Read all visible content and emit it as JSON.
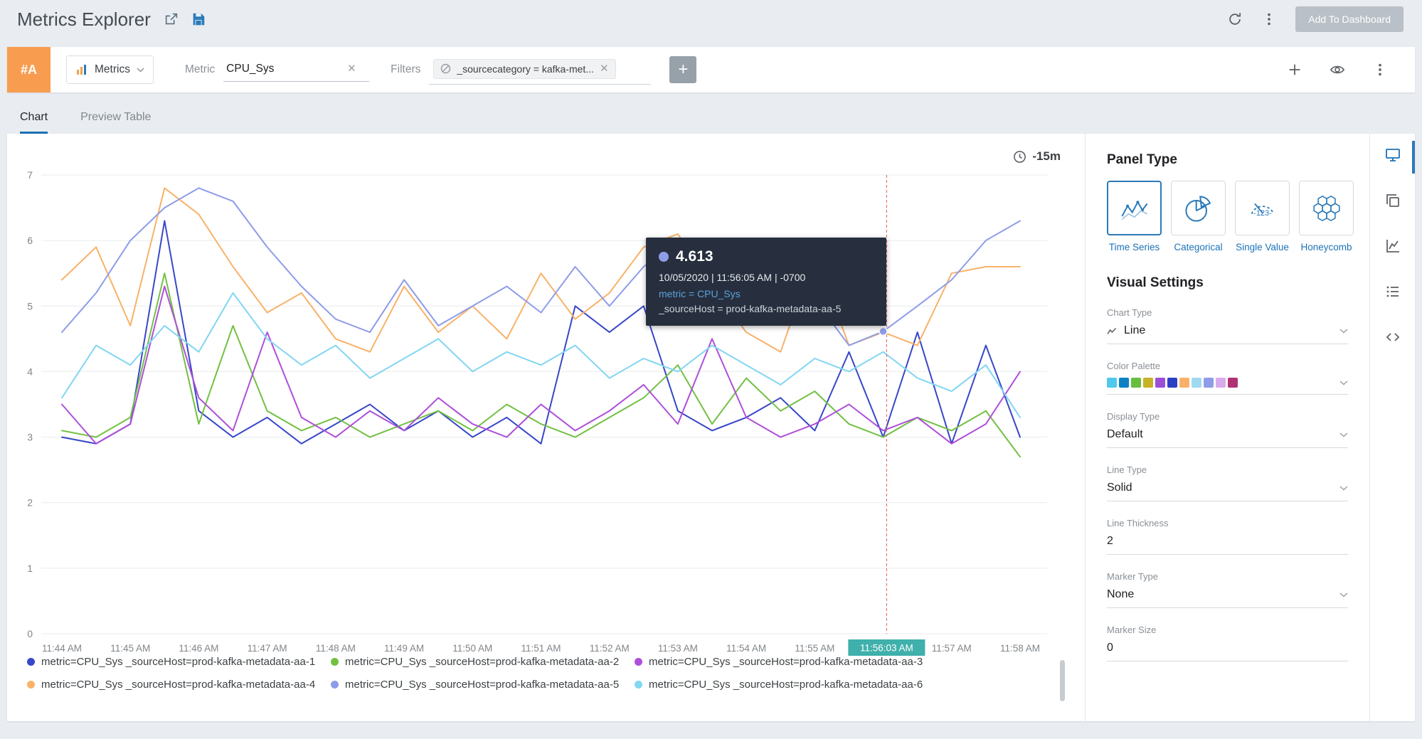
{
  "header": {
    "title": "Metrics Explorer",
    "add_to_dashboard_label": "Add To Dashboard"
  },
  "query": {
    "row_id": "#A",
    "type_selector": "Metrics",
    "metric_label": "Metric",
    "metric_value": "CPU_Sys",
    "filters_label": "Filters",
    "filter_chip": "_sourcecategory = kafka-met..."
  },
  "tabs": {
    "chart": "Chart",
    "preview_table": "Preview Table"
  },
  "time_range": "-15m",
  "tooltip": {
    "value": "4.613",
    "timestamp": "10/05/2020 | 11:56:05 AM | -0700",
    "metric": "metric = CPU_Sys",
    "source_host": "_sourceHost = prod-kafka-metadata-aa-5"
  },
  "chart_data": {
    "type": "line",
    "title": "",
    "xlabel": "",
    "ylabel": "",
    "ylim": [
      0,
      7
    ],
    "y_ticks": [
      0,
      1,
      2,
      3,
      4,
      5,
      6,
      7
    ],
    "x_tick_labels": [
      "11:44 AM",
      "11:45 AM",
      "11:46 AM",
      "11:47 AM",
      "11:48 AM",
      "11:49 AM",
      "11:50 AM",
      "11:51 AM",
      "11:52 AM",
      "11:53 AM",
      "11:54 AM",
      "11:55 AM",
      "11:56 AM",
      "11:57 AM",
      "11:58 AM"
    ],
    "hidden_tick_index": 12,
    "highlight_tick_label": "11:56:03 AM",
    "highlight_minute": 12.05,
    "points_per_minute": 2,
    "grid": "horizontal",
    "legend_position": "bottom",
    "series": [
      {
        "name": "metric=CPU_Sys _sourceHost=prod-kafka-metadata-aa-1",
        "color": "#3847c8",
        "values": [
          3.0,
          2.9,
          3.2,
          6.3,
          3.4,
          3.0,
          3.3,
          2.9,
          3.2,
          3.5,
          3.1,
          3.4,
          3.0,
          3.3,
          2.9,
          5.0,
          4.6,
          5.0,
          3.4,
          3.1,
          3.3,
          3.6,
          3.1,
          4.3,
          3.0,
          4.6,
          2.9,
          4.4,
          3.0
        ]
      },
      {
        "name": "metric=CPU_Sys _sourceHost=prod-kafka-metadata-aa-2",
        "color": "#72c043",
        "values": [
          3.1,
          3.0,
          3.3,
          5.5,
          3.2,
          4.7,
          3.4,
          3.1,
          3.3,
          3.0,
          3.2,
          3.4,
          3.1,
          3.5,
          3.2,
          3.0,
          3.3,
          3.6,
          4.1,
          3.2,
          3.9,
          3.4,
          3.7,
          3.2,
          3.0,
          3.3,
          3.1,
          3.4,
          2.7
        ]
      },
      {
        "name": "metric=CPU_Sys _sourceHost=prod-kafka-metadata-aa-3",
        "color": "#ae4fd9",
        "values": [
          3.5,
          2.9,
          3.2,
          5.3,
          3.6,
          3.1,
          4.6,
          3.3,
          3.0,
          3.4,
          3.1,
          3.6,
          3.2,
          3.0,
          3.5,
          3.1,
          3.4,
          3.8,
          3.2,
          4.5,
          3.3,
          3.0,
          3.2,
          3.5,
          3.1,
          3.3,
          2.9,
          3.2,
          4.0
        ]
      },
      {
        "name": "metric=CPU_Sys _sourceHost=prod-kafka-metadata-aa-4",
        "color": "#f8b269",
        "values": [
          5.4,
          5.9,
          4.7,
          6.8,
          6.4,
          5.6,
          4.9,
          5.2,
          4.5,
          4.3,
          5.3,
          4.6,
          5.0,
          4.5,
          5.5,
          4.8,
          5.2,
          5.9,
          6.1,
          5.3,
          4.6,
          4.3,
          5.8,
          4.4,
          4.6,
          4.4,
          5.5,
          5.6,
          5.6
        ]
      },
      {
        "name": "metric=CPU_Sys _sourceHost=prod-kafka-metadata-aa-5",
        "color": "#8f9ce8",
        "values": [
          4.6,
          5.2,
          6.0,
          6.5,
          6.8,
          6.6,
          5.9,
          5.3,
          4.8,
          4.6,
          5.4,
          4.7,
          5.0,
          5.3,
          4.9,
          5.6,
          5.0,
          5.6,
          6.0,
          5.8,
          5.3,
          5.9,
          5.1,
          4.4,
          4.613,
          5.0,
          5.4,
          6.0,
          6.3
        ]
      },
      {
        "name": "metric=CPU_Sys _sourceHost=prod-kafka-metadata-aa-6",
        "color": "#82d6f2",
        "values": [
          3.6,
          4.4,
          4.1,
          4.7,
          4.3,
          5.2,
          4.5,
          4.1,
          4.4,
          3.9,
          4.2,
          4.5,
          4.0,
          4.3,
          4.1,
          4.4,
          3.9,
          4.2,
          4.0,
          4.4,
          4.1,
          3.8,
          4.2,
          4.0,
          4.3,
          3.9,
          3.7,
          4.1,
          3.3
        ]
      }
    ],
    "marker": {
      "series_index": 4,
      "point_index": 24,
      "value": 4.613
    }
  },
  "panel": {
    "title": "Panel Type",
    "options": [
      {
        "label": "Time Series",
        "selected": true
      },
      {
        "label": "Categorical",
        "selected": false
      },
      {
        "label": "Single Value",
        "selected": false
      },
      {
        "label": "Honeycomb",
        "selected": false
      }
    ],
    "visual_settings_title": "Visual Settings",
    "fields": [
      {
        "label": "Chart Type",
        "value": "Line"
      },
      {
        "label": "Color Palette",
        "value": ""
      },
      {
        "label": "Display Type",
        "value": "Default"
      },
      {
        "label": "Line Type",
        "value": "Solid"
      },
      {
        "label": "Line Thickness",
        "value": "2"
      },
      {
        "label": "Marker Type",
        "value": "None"
      },
      {
        "label": "Marker Size",
        "value": "0"
      }
    ],
    "palette": [
      "#4fc8ec",
      "#0c82c5",
      "#67bf3d",
      "#c8b227",
      "#9b4fd6",
      "#2d3fc4",
      "#f9b168",
      "#9fd9f2",
      "#8f9ce8",
      "#d8abec",
      "#b03273"
    ]
  },
  "colors": {
    "accent_blue": "#2a7ab9",
    "highlight_teal": "#3fb0ab",
    "crosshair_red": "#e25c5c"
  }
}
